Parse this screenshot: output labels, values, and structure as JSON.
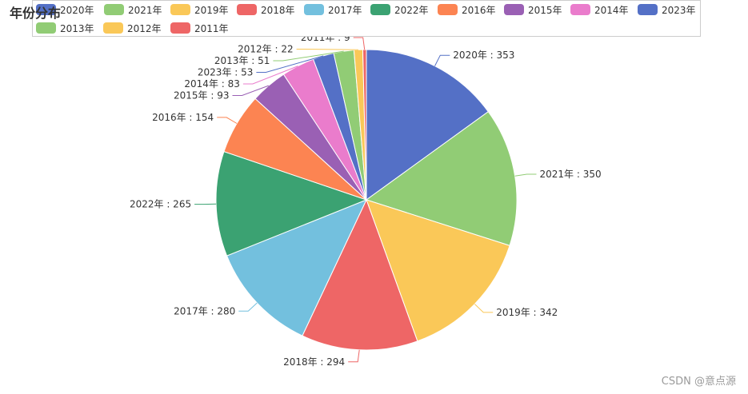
{
  "chart_data": {
    "type": "pie",
    "title": "年份分布",
    "categories": [
      "2020年",
      "2021年",
      "2019年",
      "2018年",
      "2017年",
      "2022年",
      "2016年",
      "2015年",
      "2014年",
      "2023年",
      "2013年",
      "2012年",
      "2011年"
    ],
    "values": [
      353,
      350,
      342,
      294,
      280,
      265,
      154,
      93,
      83,
      53,
      51,
      22,
      9
    ],
    "colors": [
      "#5470c6",
      "#91cc75",
      "#fac858",
      "#ee6666",
      "#73c0de",
      "#3ba272",
      "#fc8452",
      "#9a60b4",
      "#ea7ccc",
      "#5470c6",
      "#91cc75",
      "#fac858",
      "#ee6666"
    ],
    "label_format": "{name} : {value}",
    "legend_position": "top"
  },
  "watermark": "CSDN @意点源"
}
